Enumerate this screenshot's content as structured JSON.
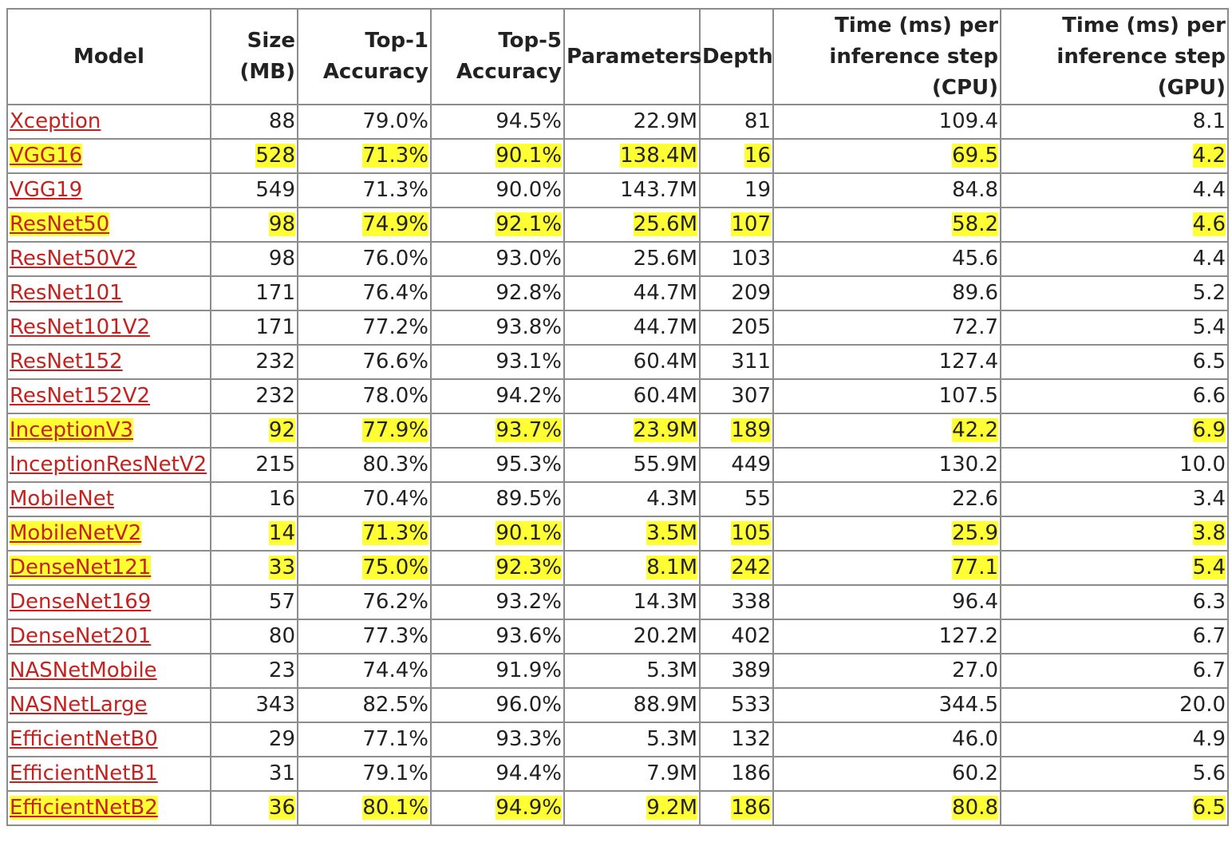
{
  "colors": {
    "link": "#c5221f",
    "highlight": "#ffff33",
    "border": "#8c8c8c",
    "text": "#222222"
  },
  "table": {
    "headers": [
      "Model",
      "Size (MB)",
      "Top-1 Accuracy",
      "Top-5 Accuracy",
      "Parameters",
      "Depth",
      "Time (ms) per inference step (CPU)",
      "Time (ms) per inference step (GPU)"
    ],
    "rows": [
      {
        "model": "Xception",
        "size": "88",
        "top1": "79.0%",
        "top5": "94.5%",
        "params": "22.9M",
        "depth": "81",
        "cpu": "109.4",
        "gpu": "8.1",
        "highlighted": false
      },
      {
        "model": "VGG16",
        "size": "528",
        "top1": "71.3%",
        "top5": "90.1%",
        "params": "138.4M",
        "depth": "16",
        "cpu": "69.5",
        "gpu": "4.2",
        "highlighted": true
      },
      {
        "model": "VGG19",
        "size": "549",
        "top1": "71.3%",
        "top5": "90.0%",
        "params": "143.7M",
        "depth": "19",
        "cpu": "84.8",
        "gpu": "4.4",
        "highlighted": false
      },
      {
        "model": "ResNet50",
        "size": "98",
        "top1": "74.9%",
        "top5": "92.1%",
        "params": "25.6M",
        "depth": "107",
        "cpu": "58.2",
        "gpu": "4.6",
        "highlighted": true
      },
      {
        "model": "ResNet50V2",
        "size": "98",
        "top1": "76.0%",
        "top5": "93.0%",
        "params": "25.6M",
        "depth": "103",
        "cpu": "45.6",
        "gpu": "4.4",
        "highlighted": false
      },
      {
        "model": "ResNet101",
        "size": "171",
        "top1": "76.4%",
        "top5": "92.8%",
        "params": "44.7M",
        "depth": "209",
        "cpu": "89.6",
        "gpu": "5.2",
        "highlighted": false
      },
      {
        "model": "ResNet101V2",
        "size": "171",
        "top1": "77.2%",
        "top5": "93.8%",
        "params": "44.7M",
        "depth": "205",
        "cpu": "72.7",
        "gpu": "5.4",
        "highlighted": false
      },
      {
        "model": "ResNet152",
        "size": "232",
        "top1": "76.6%",
        "top5": "93.1%",
        "params": "60.4M",
        "depth": "311",
        "cpu": "127.4",
        "gpu": "6.5",
        "highlighted": false
      },
      {
        "model": "ResNet152V2",
        "size": "232",
        "top1": "78.0%",
        "top5": "94.2%",
        "params": "60.4M",
        "depth": "307",
        "cpu": "107.5",
        "gpu": "6.6",
        "highlighted": false
      },
      {
        "model": "InceptionV3",
        "size": "92",
        "top1": "77.9%",
        "top5": "93.7%",
        "params": "23.9M",
        "depth": "189",
        "cpu": "42.2",
        "gpu": "6.9",
        "highlighted": true
      },
      {
        "model": "InceptionResNetV2",
        "size": "215",
        "top1": "80.3%",
        "top5": "95.3%",
        "params": "55.9M",
        "depth": "449",
        "cpu": "130.2",
        "gpu": "10.0",
        "highlighted": false
      },
      {
        "model": "MobileNet",
        "size": "16",
        "top1": "70.4%",
        "top5": "89.5%",
        "params": "4.3M",
        "depth": "55",
        "cpu": "22.6",
        "gpu": "3.4",
        "highlighted": false
      },
      {
        "model": "MobileNetV2",
        "size": "14",
        "top1": "71.3%",
        "top5": "90.1%",
        "params": "3.5M",
        "depth": "105",
        "cpu": "25.9",
        "gpu": "3.8",
        "highlighted": true
      },
      {
        "model": "DenseNet121",
        "size": "33",
        "top1": "75.0%",
        "top5": "92.3%",
        "params": "8.1M",
        "depth": "242",
        "cpu": "77.1",
        "gpu": "5.4",
        "highlighted": true
      },
      {
        "model": "DenseNet169",
        "size": "57",
        "top1": "76.2%",
        "top5": "93.2%",
        "params": "14.3M",
        "depth": "338",
        "cpu": "96.4",
        "gpu": "6.3",
        "highlighted": false
      },
      {
        "model": "DenseNet201",
        "size": "80",
        "top1": "77.3%",
        "top5": "93.6%",
        "params": "20.2M",
        "depth": "402",
        "cpu": "127.2",
        "gpu": "6.7",
        "highlighted": false
      },
      {
        "model": "NASNetMobile",
        "size": "23",
        "top1": "74.4%",
        "top5": "91.9%",
        "params": "5.3M",
        "depth": "389",
        "cpu": "27.0",
        "gpu": "6.7",
        "highlighted": false
      },
      {
        "model": "NASNetLarge",
        "size": "343",
        "top1": "82.5%",
        "top5": "96.0%",
        "params": "88.9M",
        "depth": "533",
        "cpu": "344.5",
        "gpu": "20.0",
        "highlighted": false
      },
      {
        "model": "EfficientNetB0",
        "size": "29",
        "top1": "77.1%",
        "top5": "93.3%",
        "params": "5.3M",
        "depth": "132",
        "cpu": "46.0",
        "gpu": "4.9",
        "highlighted": false
      },
      {
        "model": "EfficientNetB1",
        "size": "31",
        "top1": "79.1%",
        "top5": "94.4%",
        "params": "7.9M",
        "depth": "186",
        "cpu": "60.2",
        "gpu": "5.6",
        "highlighted": false
      },
      {
        "model": "EfficientNetB2",
        "size": "36",
        "top1": "80.1%",
        "top5": "94.9%",
        "params": "9.2M",
        "depth": "186",
        "cpu": "80.8",
        "gpu": "6.5",
        "highlighted": true
      }
    ]
  }
}
